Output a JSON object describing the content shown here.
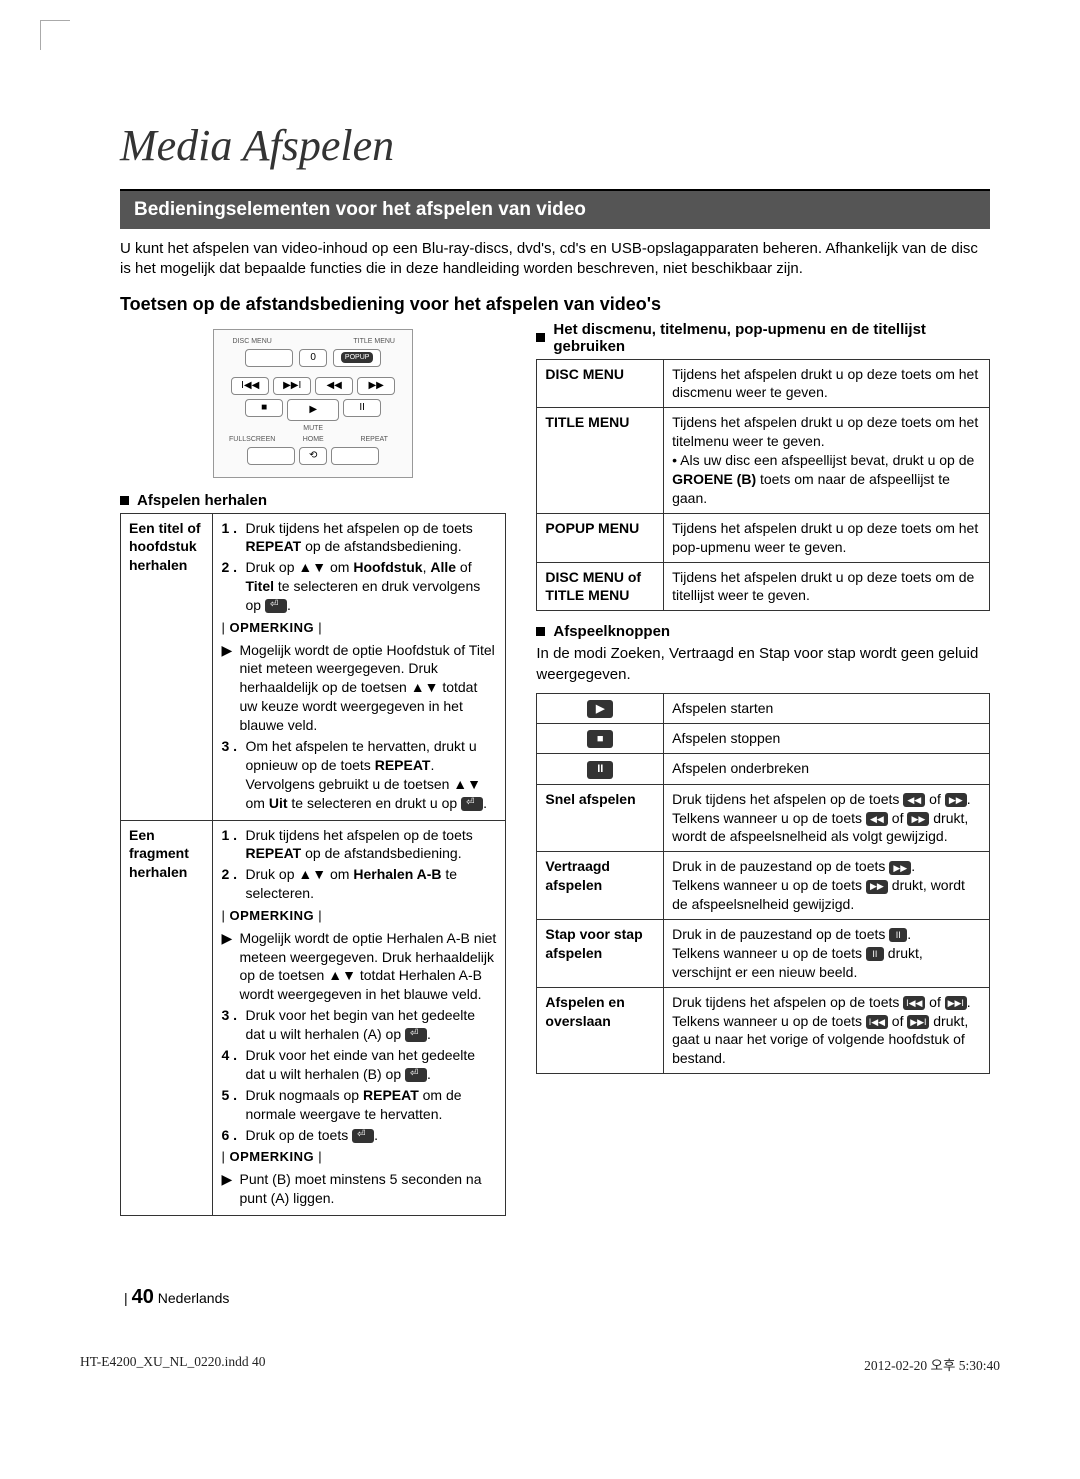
{
  "page_title": "Media Afspelen",
  "section_bar": "Bedieningselementen voor het afspelen van video",
  "intro": "U kunt het afspelen van video-inhoud op een Blu-ray-discs, dvd's, cd's en USB-opslagapparaten beheren. Afhankelijk van de disc is het mogelijk dat bepaalde functies die in deze handleiding worden beschreven, niet beschikbaar zijn.",
  "subhead": "Toetsen op de afstandsbediening voor het afspelen van video's",
  "remote": {
    "labels_top": [
      "DISC MENU",
      "TITLE MENU"
    ],
    "btn_zero": "0",
    "popup": "POPUP",
    "row2": [
      "I◀◀",
      "▶▶I",
      "◀◀",
      "▶▶"
    ],
    "row3": [
      "■",
      "▶",
      "II"
    ],
    "mute": "MUTE",
    "labels_bot": [
      "FULLSCREEN",
      "HOME",
      "REPEAT"
    ],
    "home": "⟲"
  },
  "left": {
    "h1": "Afspelen herhalen",
    "rows": [
      {
        "th": "Een titel of hoofdstuk herhalen",
        "steps": [
          {
            "n": "1 .",
            "t_html": "Druk tijdens het afspelen op de toets <b>REPEAT</b> op de afstandsbediening."
          },
          {
            "n": "2 .",
            "t_html": "Druk op ▲▼ om <b>Hoofdstuk</b>, <b>Alle</b> of <b>Titel</b> te selecteren en druk vervolgens op <span class='enter-icon'></span>."
          }
        ],
        "opm1": "OPMERKING",
        "note1": "Mogelijk wordt de optie Hoofdstuk of Titel niet meteen weergegeven. Druk herhaaldelijk op de toetsen ▲▼ totdat uw keuze wordt weergegeven in het blauwe veld.",
        "steps2": [
          {
            "n": "3 .",
            "t_html": "Om het afspelen te hervatten, drukt u opnieuw op de toets <b>REPEAT</b>. Vervolgens gebruikt u de toetsen ▲▼ om <b>Uit</b> te selecteren en drukt u op <span class='enter-icon'></span>."
          }
        ]
      },
      {
        "th": "Een fragment herhalen",
        "steps": [
          {
            "n": "1 .",
            "t_html": "Druk tijdens het afspelen op de toets <b>REPEAT</b> op de afstandsbediening."
          },
          {
            "n": "2 .",
            "t_html": "Druk op ▲▼ om <b>Herhalen A-B</b> te selecteren."
          }
        ],
        "opm1": "OPMERKING",
        "note1": "Mogelijk wordt de optie Herhalen A-B niet meteen weergegeven. Druk herhaaldelijk op de toetsen ▲▼ totdat Herhalen A-B wordt weergegeven in het blauwe veld.",
        "steps2": [
          {
            "n": "3 .",
            "t_html": "Druk voor het begin van het gedeelte dat u wilt herhalen (A) op <span class='enter-icon'></span>."
          },
          {
            "n": "4 .",
            "t_html": "Druk voor het einde van het gedeelte dat u wilt herhalen (B) op <span class='enter-icon'></span>."
          },
          {
            "n": "5 .",
            "t_html": "Druk nogmaals op <b>REPEAT</b> om de normale weergave te hervatten."
          },
          {
            "n": "6 .",
            "t_html": "Druk op de toets <span class='enter-icon'></span>."
          }
        ],
        "opm2": "OPMERKING",
        "note2": "Punt (B) moet minstens 5 seconden na punt (A) liggen."
      }
    ]
  },
  "right": {
    "h1": "Het discmenu, titelmenu, pop-upmenu en de titellijst gebruiken",
    "table1": [
      {
        "th": "DISC MENU",
        "td": "Tijdens het afspelen drukt u op deze toets om het discmenu weer te geven."
      },
      {
        "th": "TITLE MENU",
        "td_html": "Tijdens het afspelen drukt u op deze toets om het titelmenu weer te geven.<br>• Als uw disc een afspeellijst bevat, drukt u op de <b>GROENE (B)</b> toets om naar de afspeellijst te gaan."
      },
      {
        "th": "POPUP MENU",
        "td": "Tijdens het afspelen drukt u op deze toets om het pop-upmenu weer te geven."
      },
      {
        "th": "DISC MENU of TITLE MENU",
        "td": "Tijdens het afspelen drukt u op deze toets om de titellijst weer te geven."
      }
    ],
    "h2": "Afspeelknoppen",
    "h2_sub": "In de modi Zoeken, Vertraagd en Stap voor stap wordt geen geluid weergegeven.",
    "table2": [
      {
        "icon": "▶",
        "th": "",
        "td": "Afspelen starten"
      },
      {
        "icon": "■",
        "th": "",
        "td": "Afspelen stoppen"
      },
      {
        "icon": "II",
        "th": "",
        "td": "Afspelen onderbreken"
      },
      {
        "th": "Snel afspelen",
        "td_html": "Druk tijdens het afspelen op de toets <span class='icon-inline'>◀◀</span> of <span class='icon-inline'>▶▶</span>.<br>Telkens wanneer u op de toets <span class='icon-inline'>◀◀</span> of <span class='icon-inline'>▶▶</span> drukt, wordt de afspeelsnelheid als volgt gewijzigd."
      },
      {
        "th": "Vertraagd afspelen",
        "td_html": "Druk in de pauzestand op de toets <span class='icon-inline'>▶▶</span>.<br>Telkens wanneer u op de toets <span class='icon-inline'>▶▶</span> drukt, wordt de afspeelsnelheid gewijzigd."
      },
      {
        "th": "Stap voor stap afspelen",
        "td_html": "Druk in de pauzestand op de toets <span class='icon-sq'>II</span>.<br>Telkens wanneer u op de toets <span class='icon-sq'>II</span> drukt, verschijnt er een nieuw beeld."
      },
      {
        "th": "Afspelen en overslaan",
        "td_html": "Druk tijdens het afspelen op de toets <span class='icon-inline'>I◀◀</span> of <span class='icon-inline'>▶▶I</span>.<br>Telkens wanneer u op de toets <span class='icon-inline'>I◀◀</span> of <span class='icon-inline'>▶▶I</span> drukt, gaat u naar het vorige of volgende hoofdstuk of bestand."
      }
    ]
  },
  "footer": {
    "page": "40",
    "lang": "Nederlands"
  },
  "printline": {
    "left": "HT-E4200_XU_NL_0220.indd   40",
    "right": "2012-02-20   오후 5:30:40"
  }
}
